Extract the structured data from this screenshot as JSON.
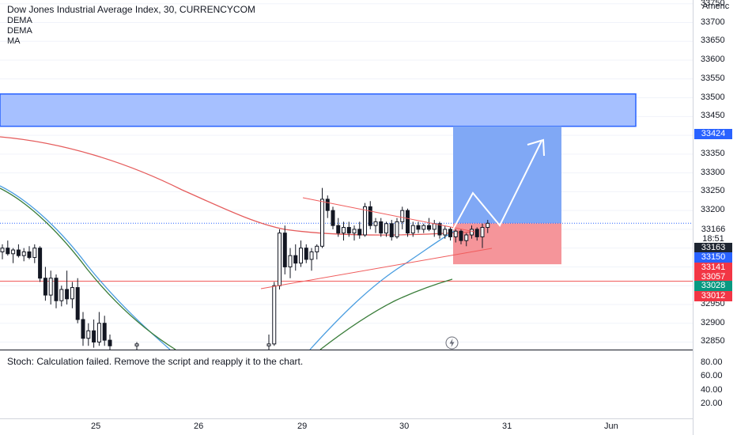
{
  "legend": {
    "title": "Dow Jones Industrial Average Index, 30, CURRENCYCOM",
    "indicators": [
      "DEMA",
      "DEMA",
      "MA"
    ]
  },
  "stoch_message": "Stoch: Calculation failed. Remove the script and reapply it to the chart.",
  "region_label": "Americ",
  "colors": {
    "up": "#26a69a",
    "down": "#ef5350",
    "candle": "#131722",
    "zone_blue": "#a6c0ff",
    "zone_blue_border": "#2962ff",
    "target_blue": "#80a8f5",
    "stop_red": "#f5959a",
    "trend_red": "#f05c5c",
    "ma_red": "#e55c5c",
    "dema_blue": "#4a9de0",
    "dema_green": "#3a7d3a"
  },
  "chart_data": {
    "type": "candlestick",
    "title": "Dow Jones Industrial Average Index, 30, CURRENCYCOM",
    "price_axis": {
      "range": [
        32830,
        33760
      ],
      "ticks": [
        32850,
        32900,
        32950,
        33000,
        33050,
        33100,
        33150,
        33200,
        33250,
        33300,
        33350,
        33400,
        33450,
        33500,
        33550,
        33600,
        33650,
        33700,
        33750
      ],
      "tick_labels": [
        "32850",
        "32900",
        "32950",
        "",
        "",
        "",
        "",
        "33200",
        "33250",
        "33300",
        "33350",
        "33400",
        "33450",
        "33500",
        "33550",
        "33600",
        "33650",
        "33700",
        "33750"
      ]
    },
    "time_axis": {
      "labels": [
        "25",
        "26",
        "29",
        "30",
        "31",
        "Jun"
      ]
    },
    "price_tags": [
      {
        "label": "33424",
        "value": 33424,
        "color": "#2962ff"
      },
      {
        "label": "33166",
        "value": 33166,
        "color": "#ffffff",
        "text_color": "#131722",
        "border": "#2962ff"
      },
      {
        "label": "18:51",
        "value": 33142,
        "color": "#ffffff",
        "text_color": "#131722",
        "border": "#2962ff"
      },
      {
        "label": "33163",
        "value": 33118,
        "color": "#1e2531"
      },
      {
        "label": "33150",
        "value": 33094,
        "color": "#2962ff"
      },
      {
        "label": "33141",
        "value": 33070,
        "color": "#f23645"
      },
      {
        "label": "33057",
        "value": 33046,
        "color": "#f23645"
      },
      {
        "label": "33028",
        "value": 33022,
        "color": "#089981"
      },
      {
        "label": "33012",
        "value": 32998,
        "color": "#f23645"
      }
    ],
    "supply_zone": {
      "low": 33424,
      "high": 33510
    },
    "position": {
      "entry": 33166,
      "target": 33424,
      "stop": 33057
    },
    "horizontal_line": 33012,
    "oscillator": {
      "name": "Stoch",
      "ticks": [
        20,
        40,
        60,
        80
      ],
      "tick_labels": [
        "20.00",
        "40.00",
        "60.00",
        "80.00"
      ],
      "status": "Calculation failed"
    },
    "candles": [
      {
        "x": 0,
        "o": 33090,
        "h": 33110,
        "l": 33070,
        "c": 33100
      },
      {
        "x": 1,
        "o": 33100,
        "h": 33120,
        "l": 33080,
        "c": 33085
      },
      {
        "x": 2,
        "o": 33085,
        "h": 33100,
        "l": 33060,
        "c": 33095
      },
      {
        "x": 3,
        "o": 33095,
        "h": 33110,
        "l": 33075,
        "c": 33080
      },
      {
        "x": 4,
        "o": 33080,
        "h": 33100,
        "l": 33065,
        "c": 33090
      },
      {
        "x": 5,
        "o": 33090,
        "h": 33105,
        "l": 33070,
        "c": 33075
      },
      {
        "x": 6,
        "o": 33075,
        "h": 33110,
        "l": 33060,
        "c": 33100
      },
      {
        "x": 7,
        "o": 33100,
        "h": 33105,
        "l": 33010,
        "c": 33020
      },
      {
        "x": 8,
        "o": 33020,
        "h": 33050,
        "l": 32960,
        "c": 32975
      },
      {
        "x": 9,
        "o": 32975,
        "h": 33040,
        "l": 32950,
        "c": 33020
      },
      {
        "x": 10,
        "o": 33020,
        "h": 33030,
        "l": 32940,
        "c": 32960
      },
      {
        "x": 11,
        "o": 32960,
        "h": 33000,
        "l": 32945,
        "c": 32990
      },
      {
        "x": 12,
        "o": 32990,
        "h": 33040,
        "l": 32950,
        "c": 32965
      },
      {
        "x": 13,
        "o": 32965,
        "h": 33010,
        "l": 32940,
        "c": 32995
      },
      {
        "x": 14,
        "o": 32995,
        "h": 33020,
        "l": 32900,
        "c": 32910
      },
      {
        "x": 15,
        "o": 32910,
        "h": 32930,
        "l": 32840,
        "c": 32860
      },
      {
        "x": 16,
        "o": 32860,
        "h": 32900,
        "l": 32840,
        "c": 32880
      },
      {
        "x": 17,
        "o": 32880,
        "h": 32910,
        "l": 32835,
        "c": 32850
      },
      {
        "x": 18,
        "o": 32850,
        "h": 32930,
        "l": 32840,
        "c": 32900
      },
      {
        "x": 19,
        "o": 32900,
        "h": 32920,
        "l": 32840,
        "c": 32855
      },
      {
        "x": 20,
        "o": 32855,
        "h": 32870,
        "l": 32830,
        "c": 32840
      },
      {
        "x": 25,
        "o": 32840,
        "h": 32850,
        "l": 32830,
        "c": 32845
      },
      {
        "x": 42,
        "o": 32840,
        "h": 32870,
        "l": 32830,
        "c": 32845
      },
      {
        "x": 43,
        "o": 32845,
        "h": 33010,
        "l": 32840,
        "c": 33000
      },
      {
        "x": 44,
        "o": 33000,
        "h": 33150,
        "l": 32990,
        "c": 33140
      },
      {
        "x": 45,
        "o": 33140,
        "h": 33160,
        "l": 33030,
        "c": 33050
      },
      {
        "x": 46,
        "o": 33050,
        "h": 33100,
        "l": 33020,
        "c": 33080
      },
      {
        "x": 47,
        "o": 33080,
        "h": 33110,
        "l": 33040,
        "c": 33060
      },
      {
        "x": 48,
        "o": 33060,
        "h": 33120,
        "l": 33050,
        "c": 33100
      },
      {
        "x": 49,
        "o": 33100,
        "h": 33110,
        "l": 33060,
        "c": 33070
      },
      {
        "x": 50,
        "o": 33070,
        "h": 33100,
        "l": 33040,
        "c": 33090
      },
      {
        "x": 51,
        "o": 33090,
        "h": 33110,
        "l": 33070,
        "c": 33105
      },
      {
        "x": 52,
        "o": 33105,
        "h": 33260,
        "l": 33100,
        "c": 33230
      },
      {
        "x": 53,
        "o": 33230,
        "h": 33240,
        "l": 33180,
        "c": 33200
      },
      {
        "x": 54,
        "o": 33200,
        "h": 33210,
        "l": 33150,
        "c": 33160
      },
      {
        "x": 55,
        "o": 33160,
        "h": 33180,
        "l": 33130,
        "c": 33140
      },
      {
        "x": 56,
        "o": 33140,
        "h": 33170,
        "l": 33120,
        "c": 33155
      },
      {
        "x": 57,
        "o": 33155,
        "h": 33170,
        "l": 33130,
        "c": 33140
      },
      {
        "x": 58,
        "o": 33140,
        "h": 33160,
        "l": 33120,
        "c": 33150
      },
      {
        "x": 59,
        "o": 33150,
        "h": 33170,
        "l": 33125,
        "c": 33135
      },
      {
        "x": 60,
        "o": 33135,
        "h": 33220,
        "l": 33130,
        "c": 33210
      },
      {
        "x": 61,
        "o": 33210,
        "h": 33225,
        "l": 33150,
        "c": 33160
      },
      {
        "x": 62,
        "o": 33160,
        "h": 33180,
        "l": 33140,
        "c": 33170
      },
      {
        "x": 63,
        "o": 33170,
        "h": 33180,
        "l": 33130,
        "c": 33140
      },
      {
        "x": 64,
        "o": 33140,
        "h": 33170,
        "l": 33130,
        "c": 33165
      },
      {
        "x": 65,
        "o": 33165,
        "h": 33175,
        "l": 33120,
        "c": 33130
      },
      {
        "x": 66,
        "o": 33130,
        "h": 33180,
        "l": 33125,
        "c": 33170
      },
      {
        "x": 67,
        "o": 33170,
        "h": 33210,
        "l": 33150,
        "c": 33200
      },
      {
        "x": 68,
        "o": 33200,
        "h": 33205,
        "l": 33130,
        "c": 33140
      },
      {
        "x": 69,
        "o": 33140,
        "h": 33170,
        "l": 33130,
        "c": 33160
      },
      {
        "x": 70,
        "o": 33160,
        "h": 33170,
        "l": 33140,
        "c": 33150
      },
      {
        "x": 71,
        "o": 33150,
        "h": 33165,
        "l": 33140,
        "c": 33160
      },
      {
        "x": 72,
        "o": 33160,
        "h": 33180,
        "l": 33145,
        "c": 33150
      },
      {
        "x": 73,
        "o": 33150,
        "h": 33175,
        "l": 33130,
        "c": 33165
      },
      {
        "x": 74,
        "o": 33165,
        "h": 33170,
        "l": 33125,
        "c": 33135
      },
      {
        "x": 75,
        "o": 33135,
        "h": 33160,
        "l": 33125,
        "c": 33150
      },
      {
        "x": 76,
        "o": 33150,
        "h": 33155,
        "l": 33120,
        "c": 33130
      },
      {
        "x": 77,
        "o": 33130,
        "h": 33150,
        "l": 33115,
        "c": 33145
      },
      {
        "x": 78,
        "o": 33145,
        "h": 33150,
        "l": 33110,
        "c": 33120
      },
      {
        "x": 79,
        "o": 33120,
        "h": 33140,
        "l": 33105,
        "c": 33135
      },
      {
        "x": 80,
        "o": 33135,
        "h": 33160,
        "l": 33125,
        "c": 33150
      },
      {
        "x": 81,
        "o": 33150,
        "h": 33155,
        "l": 33120,
        "c": 33130
      },
      {
        "x": 82,
        "o": 33130,
        "h": 33165,
        "l": 33100,
        "c": 33155
      },
      {
        "x": 83,
        "o": 33155,
        "h": 33175,
        "l": 33140,
        "c": 33166
      }
    ]
  }
}
